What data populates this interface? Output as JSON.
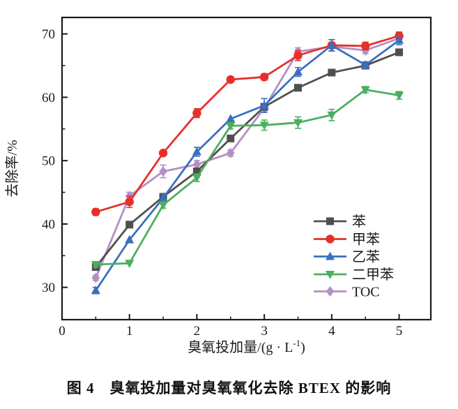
{
  "figure": {
    "caption": "图 4　臭氧投加量对臭氧氧化去除 BTEX 的影响"
  },
  "chart_data": {
    "type": "line",
    "title": "",
    "xlabel": "臭氧投加量/(g · L⁻¹)",
    "xlabel_parts": [
      "臭氧投加量/(g · L",
      "-1",
      ")"
    ],
    "ylabel": "去除率/%",
    "xlim": [
      0,
      5.47
    ],
    "ylim": [
      24.9,
      72.6
    ],
    "x_ticks": [
      0,
      1,
      2,
      3,
      4,
      5
    ],
    "x_tick_labels": [
      "0",
      "1",
      "2",
      "3",
      "4",
      "5"
    ],
    "x_minor_ticks": [
      0.5,
      1.5,
      2.5,
      3.5,
      4.5
    ],
    "y_ticks": [
      30,
      40,
      50,
      60,
      70
    ],
    "y_tick_labels": [
      "30",
      "40",
      "50",
      "60",
      "70"
    ],
    "y_minor_ticks": [
      35,
      45,
      55,
      65
    ],
    "grid": false,
    "legend_position": "lower right",
    "axis_color": "#1a1a1a",
    "x": [
      0.5,
      1,
      1.5,
      2,
      2.5,
      3,
      3.5,
      4,
      4.5,
      5
    ],
    "series": [
      {
        "name": "苯",
        "marker": "square",
        "color": "#4f4f4f",
        "values": [
          33.2,
          39.9,
          44.3,
          48.3,
          53.5,
          58.5,
          61.5,
          63.9,
          65.0,
          67.1
        ],
        "err": [
          0,
          0,
          0,
          0.5,
          0,
          0,
          0,
          0,
          0,
          0
        ]
      },
      {
        "name": "甲苯",
        "marker": "circle",
        "color": "#e5302a",
        "values": [
          41.9,
          43.5,
          51.2,
          57.5,
          62.8,
          63.2,
          66.6,
          68.2,
          68.1,
          69.7
        ],
        "err": [
          0.5,
          0.9,
          0,
          0.7,
          0,
          0.5,
          0.8,
          0.9,
          0.6,
          0.6
        ]
      },
      {
        "name": "乙苯",
        "marker": "triangle-up",
        "color": "#3a6fbf",
        "values": [
          29.5,
          37.5,
          44.1,
          51.4,
          56.6,
          58.7,
          64.0,
          68.2,
          65.1,
          69.0
        ],
        "err": [
          0.5,
          0,
          0.6,
          0.7,
          0,
          1.1,
          0.7,
          0.9,
          0.5,
          0.7
        ]
      },
      {
        "name": "二甲苯",
        "marker": "triangle-down",
        "color": "#4caf5e",
        "values": [
          33.6,
          33.8,
          43.0,
          47.3,
          55.5,
          55.6,
          56.0,
          57.2,
          61.2,
          60.3
        ],
        "err": [
          0.4,
          0,
          0.5,
          0.6,
          0.5,
          0.8,
          0.9,
          0.9,
          0.5,
          0.6
        ]
      },
      {
        "name": "TOC",
        "marker": "diamond",
        "color": "#b48fc6",
        "values": [
          31.5,
          44.4,
          48.3,
          49.4,
          51.2,
          58.3,
          67.2,
          68.0,
          67.4,
          69.3
        ],
        "err": [
          0.4,
          0.6,
          1.0,
          0.6,
          0.5,
          0.5,
          0.6,
          0.7,
          0.5,
          0.5
        ]
      }
    ]
  }
}
